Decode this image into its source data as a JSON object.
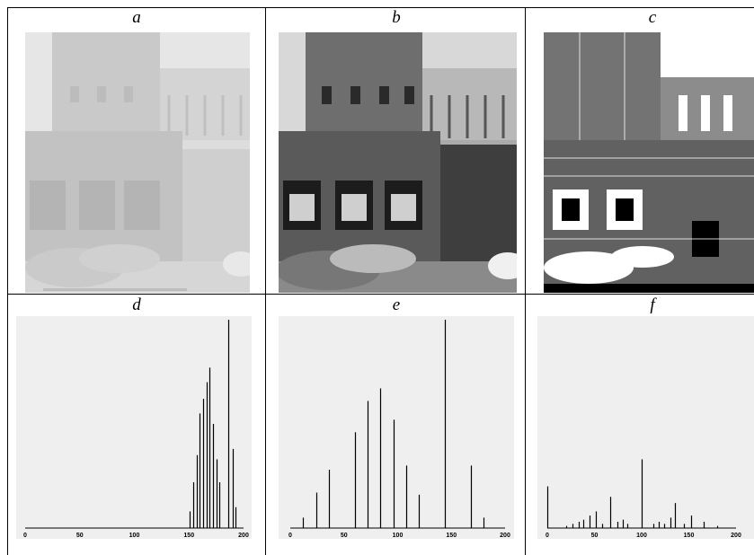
{
  "panels": {
    "a": {
      "label": "a"
    },
    "b": {
      "label": "b"
    },
    "c": {
      "label": "c"
    },
    "d": {
      "label": "d"
    },
    "e": {
      "label": "e"
    },
    "f": {
      "label": "f"
    }
  },
  "chart_data": [
    {
      "panel": "d",
      "type": "bar",
      "xlim": [
        0,
        200
      ],
      "ticks": [
        "0",
        "50",
        "100",
        "150",
        "200"
      ],
      "x": [
        151,
        154,
        157,
        160,
        163,
        166,
        169,
        172,
        175,
        178,
        186,
        190,
        193
      ],
      "values": [
        0.08,
        0.22,
        0.35,
        0.55,
        0.62,
        0.7,
        0.77,
        0.5,
        0.33,
        0.22,
        1.0,
        0.38,
        0.1
      ]
    },
    {
      "panel": "e",
      "type": "bar",
      "xlim": [
        0,
        200
      ],
      "ticks": [
        "0",
        "50",
        "100",
        "150",
        "200"
      ],
      "x": [
        12,
        24,
        36,
        60,
        72,
        84,
        96,
        108,
        120,
        144,
        156,
        168,
        180
      ],
      "values": [
        0.05,
        0.17,
        0.28,
        0.46,
        0.61,
        0.67,
        0.52,
        0.3,
        0.16,
        1.0,
        0.0,
        0.3,
        0.05
      ]
    },
    {
      "panel": "f",
      "type": "bar",
      "xlim": [
        0,
        200
      ],
      "ticks": [
        "0",
        "50",
        "100",
        "150",
        "200"
      ],
      "x": [
        0,
        20,
        27,
        33,
        38,
        45,
        51,
        58,
        67,
        74,
        80,
        85,
        100,
        112,
        118,
        124,
        130,
        135,
        145,
        152,
        166,
        180
      ],
      "values": [
        0.2,
        0.01,
        0.02,
        0.03,
        0.04,
        0.06,
        0.08,
        0.02,
        0.15,
        0.03,
        0.04,
        0.02,
        0.33,
        0.02,
        0.03,
        0.02,
        0.05,
        0.12,
        0.02,
        0.06,
        0.03,
        0.01
      ]
    }
  ]
}
